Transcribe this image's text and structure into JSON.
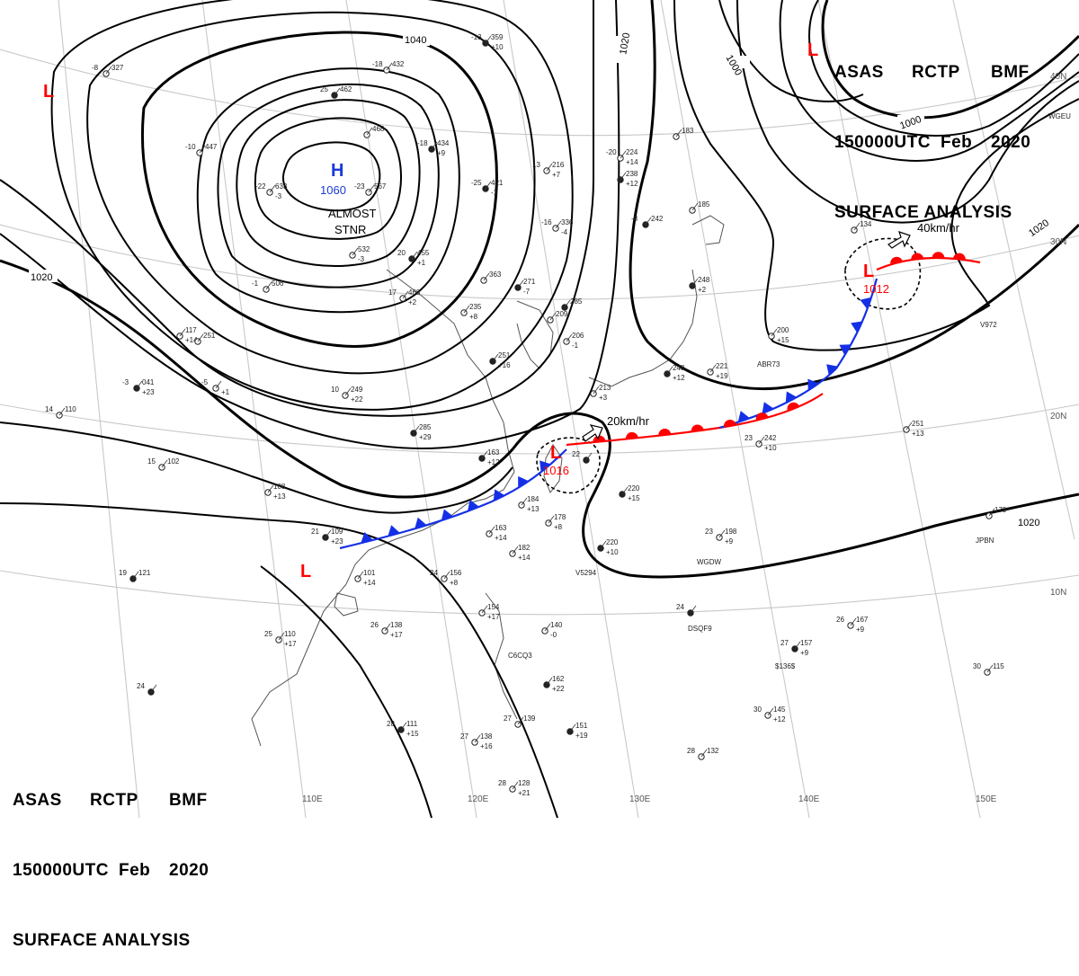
{
  "header": {
    "agency": [
      "ASAS",
      "RCTP",
      "BMF"
    ],
    "time": [
      "150000UTC",
      "Feb",
      "2020"
    ],
    "title": "SURFACE ANALYSIS"
  },
  "isobar_labels": [
    "1040",
    "1020",
    "1020",
    "1020",
    "1000",
    "1000",
    "1020",
    "1020"
  ],
  "centers": {
    "high": {
      "symbol": "H",
      "pressure": "1060",
      "note1": "ALMOST",
      "note2": "STNR"
    },
    "low_east": {
      "symbol": "L",
      "pressure": "1012",
      "motion": "40km/hr"
    },
    "low_taiwan": {
      "symbol": "L",
      "pressure": "1016",
      "motion": "20km/hr"
    },
    "low_symbols": [
      "L",
      "L",
      "L"
    ]
  },
  "lat_labels": [
    "40N",
    "30N",
    "20N",
    "10N"
  ],
  "lon_labels": [
    "110E",
    "120E",
    "130E",
    "140E",
    "150E"
  ],
  "station_plots": [
    {
      "t": "-13",
      "p": "359",
      "d": "+10"
    },
    {
      "t": "-8",
      "p": "327",
      "d": ""
    },
    {
      "t": "-18",
      "p": "432",
      "d": ""
    },
    {
      "t": "25",
      "p": "462",
      "d": ""
    },
    {
      "t": "-10",
      "p": "447",
      "d": ""
    },
    {
      "t": "",
      "p": "468",
      "d": ""
    },
    {
      "t": "-18",
      "p": "434",
      "d": "+9"
    },
    {
      "t": "-22",
      "p": "633",
      "d": "-3"
    },
    {
      "t": "-23",
      "p": "567",
      "d": ""
    },
    {
      "t": "-25",
      "p": "421",
      "d": "-1"
    },
    {
      "t": "13",
      "p": "216",
      "d": "+7"
    },
    {
      "t": "-20",
      "p": "224",
      "d": "+14"
    },
    {
      "t": "",
      "p": "238",
      "d": "+12"
    },
    {
      "t": "",
      "p": "183",
      "d": ""
    },
    {
      "t": "-16",
      "p": "336",
      "d": "-4"
    },
    {
      "t": "-8",
      "p": "242",
      "d": ""
    },
    {
      "t": "",
      "p": "185",
      "d": ""
    },
    {
      "t": "",
      "p": "532",
      "d": "-3"
    },
    {
      "t": "20",
      "p": "455",
      "d": "+1"
    },
    {
      "t": "-1",
      "p": "506",
      "d": ""
    },
    {
      "t": "",
      "p": "363",
      "d": ""
    },
    {
      "t": "",
      "p": "271",
      "d": "-7"
    },
    {
      "t": "17",
      "p": "468",
      "d": "+2"
    },
    {
      "t": "",
      "p": "235",
      "d": "+8"
    },
    {
      "t": "",
      "p": "285",
      "d": ""
    },
    {
      "t": "",
      "p": "209",
      "d": ""
    },
    {
      "t": "",
      "p": "206",
      "d": "-1"
    },
    {
      "t": "",
      "p": "248",
      "d": "+2"
    },
    {
      "t": "",
      "p": "134",
      "d": ""
    },
    {
      "t": "",
      "p": "200",
      "d": "+15"
    },
    {
      "t": "",
      "p": "251",
      "d": "+16"
    },
    {
      "t": "10",
      "p": "249",
      "d": "+22"
    },
    {
      "t": "",
      "p": "221",
      "d": "+19"
    },
    {
      "t": "",
      "p": "248",
      "d": "+12"
    },
    {
      "t": "",
      "p": "117",
      "d": "+14"
    },
    {
      "t": "",
      "p": "251",
      "d": ""
    },
    {
      "t": "-3",
      "p": "041",
      "d": "+23"
    },
    {
      "t": "-5",
      "p": "",
      "d": "+1"
    },
    {
      "t": "14",
      "p": "110",
      "d": ""
    },
    {
      "t": "",
      "p": "285",
      "d": "+29"
    },
    {
      "t": "",
      "p": "213",
      "d": "+3"
    },
    {
      "t": "",
      "p": "251",
      "d": "+13"
    },
    {
      "t": "22",
      "p": "",
      "d": ""
    },
    {
      "t": "23",
      "p": "242",
      "d": "+10"
    },
    {
      "t": "15",
      "p": "102",
      "d": ""
    },
    {
      "t": "",
      "p": "163",
      "d": "+12"
    },
    {
      "t": "",
      "p": "108",
      "d": "+13"
    },
    {
      "t": "",
      "p": "184",
      "d": "+13"
    },
    {
      "t": "",
      "p": "220",
      "d": "+15"
    },
    {
      "t": "",
      "p": "178",
      "d": "+8"
    },
    {
      "t": "",
      "p": "179",
      "d": ""
    },
    {
      "t": "21",
      "p": "109",
      "d": "+23"
    },
    {
      "t": "",
      "p": "163",
      "d": "+14"
    },
    {
      "t": "",
      "p": "182",
      "d": "+14"
    },
    {
      "t": "",
      "p": "220",
      "d": "+10"
    },
    {
      "t": "23",
      "p": "198",
      "d": "+9"
    },
    {
      "t": "",
      "p": "101",
      "d": "+14"
    },
    {
      "t": "19",
      "p": "121",
      "d": ""
    },
    {
      "t": "24",
      "p": "156",
      "d": "+8"
    },
    {
      "t": "",
      "p": "154",
      "d": "+17"
    },
    {
      "t": "24",
      "p": "",
      "d": ""
    },
    {
      "t": "26",
      "p": "138",
      "d": "+17"
    },
    {
      "t": "",
      "p": "140",
      "d": "-0"
    },
    {
      "t": "27",
      "p": "157",
      "d": "+9"
    },
    {
      "t": "26",
      "p": "167",
      "d": "+9"
    },
    {
      "t": "25",
      "p": "110",
      "d": "+17"
    },
    {
      "t": "",
      "p": "162",
      "d": "+22"
    },
    {
      "t": "30",
      "p": "115",
      "d": ""
    },
    {
      "t": "30",
      "p": "145",
      "d": "+12"
    },
    {
      "t": "28",
      "p": "111",
      "d": "+15"
    },
    {
      "t": "27",
      "p": "138",
      "d": "+16"
    },
    {
      "t": "27",
      "p": "139",
      "d": ""
    },
    {
      "t": "",
      "p": "151",
      "d": "+19"
    },
    {
      "t": "28",
      "p": "132",
      "d": ""
    },
    {
      "t": "28",
      "p": "128",
      "d": "+21"
    },
    {
      "t": "24",
      "p": "",
      "d": ""
    }
  ],
  "ship_ids": [
    "V5294",
    "WGDW",
    "DSQF9",
    "JPBN",
    "$136$",
    "C6CQ3",
    "ABR73",
    "V972",
    "WGEU"
  ],
  "colors": {
    "isobar": "#000000",
    "cold_front": "#1430e6",
    "warm_front": "#ff0000",
    "high": "#1a3ad8",
    "low": "#ff0000",
    "grid": "#c8c8c8",
    "coast": "#555555"
  }
}
